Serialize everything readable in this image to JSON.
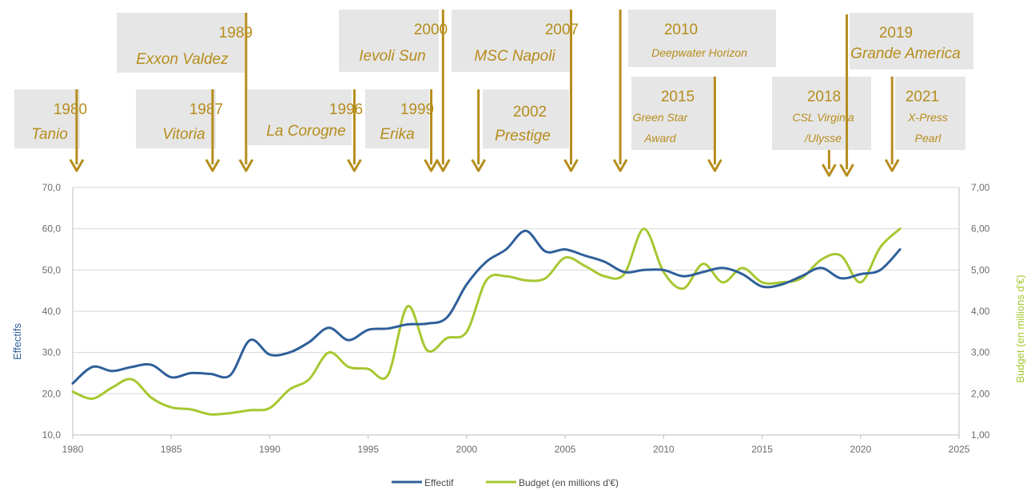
{
  "chart_data": {
    "type": "line",
    "x": [
      1980,
      1981,
      1982,
      1983,
      1984,
      1985,
      1986,
      1987,
      1988,
      1989,
      1990,
      1991,
      1992,
      1993,
      1994,
      1995,
      1996,
      1997,
      1998,
      1999,
      2000,
      2001,
      2002,
      2003,
      2004,
      2005,
      2006,
      2007,
      2008,
      2009,
      2010,
      2011,
      2012,
      2013,
      2014,
      2015,
      2016,
      2017,
      2018,
      2019,
      2020,
      2021,
      2022
    ],
    "series": [
      {
        "name": "Effectif",
        "axis": "left",
        "color": "#2f5f9a",
        "values": [
          22.5,
          26.5,
          25.5,
          26.5,
          27,
          24,
          25,
          24.8,
          24.5,
          33,
          29.5,
          30,
          32.5,
          36,
          33,
          35.5,
          35.8,
          36.8,
          37,
          38.5,
          46.5,
          52,
          55,
          59.5,
          54.5,
          55,
          53.5,
          52,
          49.5,
          50,
          50,
          48.5,
          49.5,
          50.5,
          49,
          46,
          46.5,
          48.5,
          50.5,
          48,
          49,
          50,
          55
        ]
      },
      {
        "name": "Budget (en millions d'€)",
        "axis": "right",
        "color": "#a6c730",
        "values": [
          2.05,
          1.88,
          2.15,
          2.35,
          1.9,
          1.67,
          1.62,
          1.5,
          1.53,
          1.6,
          1.65,
          2.1,
          2.35,
          3.0,
          2.65,
          2.6,
          2.45,
          4.12,
          3.05,
          3.35,
          3.5,
          4.75,
          4.85,
          4.75,
          4.8,
          5.3,
          5.1,
          4.85,
          4.9,
          6.0,
          4.95,
          4.55,
          5.15,
          4.7,
          5.05,
          4.7,
          4.7,
          4.8,
          5.25,
          5.35,
          4.7,
          5.55,
          6.0
        ]
      }
    ],
    "xlim": [
      1980,
      2025
    ],
    "x_ticks": [
      "1980",
      "1985",
      "1990",
      "1995",
      "2000",
      "2005",
      "2010",
      "2015",
      "2020",
      "2025"
    ],
    "ylim_left": [
      10,
      70
    ],
    "y_ticks_left": [
      "10,0",
      "20,0",
      "30,0",
      "40,0",
      "50,0",
      "60,0",
      "70,0"
    ],
    "ylim_right": [
      1,
      7
    ],
    "y_ticks_right": [
      "1,00",
      "2,00",
      "3,00",
      "4,00",
      "5,00",
      "6,00",
      "7,00"
    ],
    "ylabel_left": "Effectifs",
    "ylabel_right": "Budget (en millions d'€)",
    "grid": true,
    "legend_position": "bottom",
    "events": [
      {
        "year_label": "1980",
        "name": "Tanio",
        "arrow_year": 1980.2
      },
      {
        "year_label": "1987",
        "name": "Vitoria",
        "arrow_year": 1987.1
      },
      {
        "year_label": "1989",
        "name": "Exxon Valdez",
        "arrow_year": 1988.8
      },
      {
        "year_label": "1996",
        "name": "La Corogne",
        "arrow_year": 1994.3
      },
      {
        "year_label": "1999",
        "name": "Erika",
        "arrow_year": 1998.2
      },
      {
        "year_label": "2000",
        "name": "Ievoli Sun",
        "arrow_year": 1998.8
      },
      {
        "year_label": "2002",
        "name": "Prestige",
        "arrow_year": 2000.6
      },
      {
        "year_label": "2007",
        "name": "MSC Napoli",
        "arrow_year": 2005.3
      },
      {
        "year_label": "2010",
        "name": "Deepwater Horizon",
        "arrow_year": 2007.8
      },
      {
        "year_label": "2015",
        "name": "Green Star Award",
        "name_lines": [
          "Green Star",
          "Award"
        ],
        "arrow_year": 2012.6
      },
      {
        "year_label": "2018",
        "name": "CSL Virginia /Ulysse",
        "name_lines": [
          "CSL Virginia",
          "/Ulysse"
        ],
        "arrow_year": 2018.4
      },
      {
        "year_label": "2019",
        "name": "Grande America",
        "arrow_year": 2019.3
      },
      {
        "year_label": "2021",
        "name": "X-Press Pearl",
        "name_lines": [
          "X-Press",
          "Pearl"
        ],
        "arrow_year": 2021.6
      }
    ]
  }
}
